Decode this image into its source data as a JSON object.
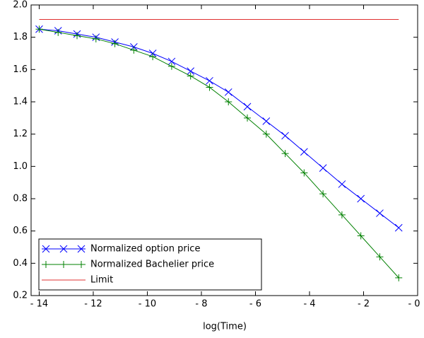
{
  "chart_data": {
    "type": "line",
    "x_label": "log(Time)",
    "x": [
      -14,
      -13.3,
      -12.6,
      -11.9,
      -11.2,
      -10.5,
      -9.8,
      -9.1,
      -8.4,
      -7.7,
      -7,
      -6.3,
      -5.6,
      -4.9,
      -4.2,
      -3.5,
      -2.8,
      -2.1,
      -1.4,
      -0.7
    ],
    "series": [
      {
        "name": "Normalized option price",
        "color": "#0000ff",
        "marker": "x",
        "values": [
          1.85,
          1.84,
          1.82,
          1.8,
          1.77,
          1.74,
          1.7,
          1.65,
          1.59,
          1.53,
          1.46,
          1.37,
          1.28,
          1.19,
          1.09,
          0.99,
          0.89,
          0.8,
          0.71,
          0.62
        ]
      },
      {
        "name": "Normalized Bachelier price",
        "color": "#008000",
        "marker": "+",
        "values": [
          1.85,
          1.83,
          1.81,
          1.79,
          1.76,
          1.72,
          1.68,
          1.62,
          1.56,
          1.49,
          1.4,
          1.3,
          1.2,
          1.08,
          0.96,
          0.83,
          0.7,
          0.57,
          0.44,
          0.31
        ]
      },
      {
        "name": "Limit",
        "color": "#e03030",
        "values": [
          1.91,
          1.91,
          1.91,
          1.91,
          1.91,
          1.91,
          1.91,
          1.91,
          1.91,
          1.91,
          1.91,
          1.91,
          1.91,
          1.91,
          1.91,
          1.91,
          1.91,
          1.91,
          1.91,
          1.91
        ]
      }
    ],
    "xlim": [
      -14.3,
      0
    ],
    "xticks": [
      {
        "value": -14,
        "label": "- 14"
      },
      {
        "value": -12,
        "label": "- 12"
      },
      {
        "value": -10,
        "label": "- 10"
      },
      {
        "value": -8,
        "label": "- 8"
      },
      {
        "value": -6,
        "label": "- 6"
      },
      {
        "value": -4,
        "label": "- 4"
      },
      {
        "value": -2,
        "label": "- 2"
      },
      {
        "value": 0,
        "label": "- 0"
      }
    ],
    "ylim": [
      0.2,
      2.0
    ],
    "yticks": [
      0.2,
      0.4,
      0.6,
      0.8,
      {
        "value": 1,
        "label": "1.0"
      },
      1.2,
      1.4,
      1.6,
      1.8,
      {
        "value": 2,
        "label": "2.0"
      }
    ],
    "legend": "lower-left"
  }
}
